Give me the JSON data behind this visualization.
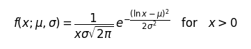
{
  "formula": "$f(x;\\mu,\\sigma) = \\dfrac{1}{x\\sigma\\sqrt{2\\pi}}\\,e^{-\\dfrac{(\\ln x-\\mu)^2}{2\\sigma^2}} \\quad \\mathrm{for} \\quad x>0$",
  "fontsize": 12,
  "background_color": "#ffffff",
  "text_color": "#000000",
  "fig_width": 3.61,
  "fig_height": 0.71,
  "dpi": 100
}
